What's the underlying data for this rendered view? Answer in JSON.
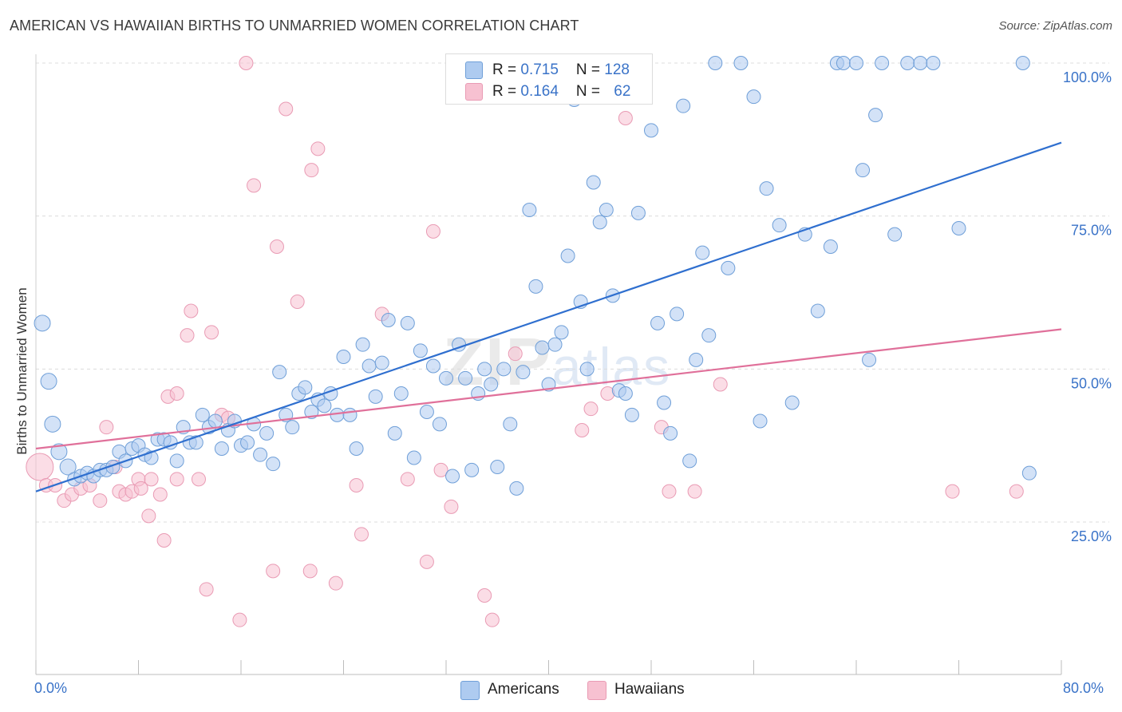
{
  "title": "AMERICAN VS HAWAIIAN BIRTHS TO UNMARRIED WOMEN CORRELATION CHART",
  "source": "Source: ZipAtlas.com",
  "watermark": {
    "zip": "ZIP",
    "atlas": "atlas"
  },
  "legend_top": {
    "americans": {
      "r_label": "R = ",
      "r_value": "0.715",
      "n_label": "N = ",
      "n_value": "128"
    },
    "hawaiians": {
      "r_label": "R = ",
      "r_value": "0.164",
      "n_label": "N = ",
      "n_value": "62"
    }
  },
  "colors": {
    "americans_fill": "#aecbf0",
    "americans_stroke": "#6f9fd8",
    "americans_line": "#2f6fcf",
    "hawaiians_fill": "#f7c1d1",
    "hawaiians_stroke": "#e99bb4",
    "hawaiians_line": "#e0709a",
    "axis_label": "#3a73c8",
    "grid": "#dcdcdc"
  },
  "chart_data": {
    "type": "scatter",
    "title": "AMERICAN VS HAWAIIAN BIRTHS TO UNMARRIED WOMEN CORRELATION CHART",
    "xlabel": "",
    "ylabel": "Births to Unmarried Women",
    "xlim": [
      0,
      80
    ],
    "ylim": [
      0,
      102
    ],
    "x_tick_labels": [
      "0.0%",
      "80.0%"
    ],
    "y_tick_labels": [
      "25.0%",
      "50.0%",
      "75.0%",
      "100.0%"
    ],
    "y_ticks": [
      25,
      50,
      75,
      100
    ],
    "grid": true,
    "legend_position": "top-center",
    "series": [
      {
        "name": "Americans",
        "r": 0.715,
        "n": 128,
        "trend": [
          [
            0,
            30.0
          ],
          [
            80,
            87.0
          ]
        ],
        "points": [
          [
            0.5,
            57.5
          ],
          [
            1,
            48
          ],
          [
            1.3,
            41
          ],
          [
            1.8,
            36.5
          ],
          [
            2.5,
            34
          ],
          [
            3,
            32
          ],
          [
            3.5,
            32.5
          ],
          [
            4,
            33
          ],
          [
            4.5,
            32.5
          ],
          [
            5,
            33.5
          ],
          [
            5.5,
            33.5
          ],
          [
            6,
            34
          ],
          [
            6.5,
            36.5
          ],
          [
            7,
            35
          ],
          [
            7.5,
            37
          ],
          [
            8,
            37.5
          ],
          [
            8.5,
            36
          ],
          [
            9,
            35.5
          ],
          [
            9.5,
            38.5
          ],
          [
            10,
            38.5
          ],
          [
            10.5,
            38
          ],
          [
            11,
            35
          ],
          [
            11.5,
            40.5
          ],
          [
            12,
            38
          ],
          [
            12.5,
            38
          ],
          [
            13,
            42.5
          ],
          [
            13.5,
            40.5
          ],
          [
            14,
            41.5
          ],
          [
            14.5,
            37
          ],
          [
            15,
            40
          ],
          [
            15.5,
            41.5
          ],
          [
            16,
            37.5
          ],
          [
            16.5,
            38
          ],
          [
            17,
            41
          ],
          [
            17.5,
            36
          ],
          [
            18,
            39.5
          ],
          [
            18.5,
            34.5
          ],
          [
            19,
            49.5
          ],
          [
            19.5,
            42.5
          ],
          [
            20,
            40.5
          ],
          [
            20.5,
            46
          ],
          [
            21,
            47
          ],
          [
            21.5,
            43
          ],
          [
            22,
            45
          ],
          [
            22.5,
            44
          ],
          [
            23,
            46
          ],
          [
            23.5,
            42.5
          ],
          [
            24,
            52
          ],
          [
            24.5,
            42.5
          ],
          [
            25,
            37
          ],
          [
            25.5,
            54
          ],
          [
            26,
            50.5
          ],
          [
            26.5,
            45.5
          ],
          [
            27,
            51
          ],
          [
            27.5,
            58
          ],
          [
            28,
            39.5
          ],
          [
            28.5,
            46
          ],
          [
            29,
            57.5
          ],
          [
            29.5,
            35.5
          ],
          [
            30,
            53
          ],
          [
            30.5,
            43
          ],
          [
            31,
            50.5
          ],
          [
            31.5,
            41
          ],
          [
            32,
            48.5
          ],
          [
            32.5,
            32.5
          ],
          [
            33,
            54
          ],
          [
            33.5,
            48.5
          ],
          [
            34,
            33.5
          ],
          [
            34.5,
            46
          ],
          [
            35,
            50
          ],
          [
            35.5,
            47.5
          ],
          [
            36,
            34
          ],
          [
            36.5,
            50
          ],
          [
            37,
            41
          ],
          [
            37.5,
            30.5
          ],
          [
            38,
            49.5
          ],
          [
            38.5,
            76
          ],
          [
            39,
            63.5
          ],
          [
            39.5,
            53.5
          ],
          [
            40,
            47.5
          ],
          [
            40.5,
            54
          ],
          [
            41,
            56
          ],
          [
            41.5,
            68.5
          ],
          [
            42,
            94
          ],
          [
            42.5,
            61
          ],
          [
            43,
            50
          ],
          [
            43.5,
            80.5
          ],
          [
            44,
            74
          ],
          [
            44.5,
            76
          ],
          [
            45,
            62
          ],
          [
            45.5,
            46.5
          ],
          [
            46,
            46
          ],
          [
            46.5,
            42.5
          ],
          [
            47,
            75.5
          ],
          [
            48,
            89
          ],
          [
            48.5,
            57.5
          ],
          [
            49,
            44.5
          ],
          [
            49.5,
            39.5
          ],
          [
            50,
            59
          ],
          [
            50.5,
            93
          ],
          [
            51,
            35
          ],
          [
            51.5,
            51.5
          ],
          [
            52,
            69
          ],
          [
            52.5,
            55.5
          ],
          [
            53,
            100
          ],
          [
            54,
            66.5
          ],
          [
            55,
            100
          ],
          [
            56,
            94.5
          ],
          [
            56.5,
            41.5
          ],
          [
            57,
            79.5
          ],
          [
            58,
            73.5
          ],
          [
            59,
            44.5
          ],
          [
            60,
            72
          ],
          [
            61,
            59.5
          ],
          [
            62,
            70
          ],
          [
            62.5,
            100
          ],
          [
            63,
            100
          ],
          [
            64,
            100
          ],
          [
            64.5,
            82.5
          ],
          [
            65,
            51.5
          ],
          [
            65.5,
            91.5
          ],
          [
            66,
            100
          ],
          [
            67,
            72
          ],
          [
            68,
            100
          ],
          [
            69,
            100
          ],
          [
            70,
            100
          ],
          [
            72,
            73
          ],
          [
            77,
            100
          ],
          [
            77.5,
            33
          ]
        ]
      },
      {
        "name": "Hawaiians",
        "r": 0.164,
        "n": 62,
        "trend": [
          [
            0,
            37.0
          ],
          [
            80,
            56.5
          ]
        ],
        "points": [
          [
            0.3,
            34
          ],
          [
            0.8,
            31
          ],
          [
            1.5,
            31
          ],
          [
            2.2,
            28.5
          ],
          [
            2.8,
            29.5
          ],
          [
            3.5,
            30.5
          ],
          [
            4.2,
            31
          ],
          [
            5,
            28.5
          ],
          [
            5.5,
            40.5
          ],
          [
            6.2,
            34
          ],
          [
            6.5,
            30
          ],
          [
            7,
            29.5
          ],
          [
            7.5,
            30
          ],
          [
            8,
            32
          ],
          [
            8.2,
            30.5
          ],
          [
            8.8,
            26
          ],
          [
            9,
            32
          ],
          [
            9.7,
            29.5
          ],
          [
            10,
            22
          ],
          [
            10.3,
            45.5
          ],
          [
            11,
            46
          ],
          [
            11,
            32
          ],
          [
            11.8,
            55.5
          ],
          [
            12.1,
            59.5
          ],
          [
            12.7,
            32
          ],
          [
            13.3,
            14
          ],
          [
            13.7,
            56
          ],
          [
            14.5,
            42.5
          ],
          [
            15,
            42
          ],
          [
            15.9,
            9
          ],
          [
            16.4,
            100
          ],
          [
            17,
            80
          ],
          [
            18.5,
            17
          ],
          [
            18.8,
            70
          ],
          [
            19.5,
            92.5
          ],
          [
            20.4,
            61
          ],
          [
            21.4,
            17
          ],
          [
            21.5,
            82.5
          ],
          [
            22,
            86
          ],
          [
            23.4,
            15
          ],
          [
            25,
            31
          ],
          [
            25.4,
            23
          ],
          [
            27,
            59
          ],
          [
            29,
            32
          ],
          [
            30.5,
            18.5
          ],
          [
            31,
            72.5
          ],
          [
            31.6,
            33.5
          ],
          [
            32.4,
            27.5
          ],
          [
            33.6,
            100
          ],
          [
            35,
            13
          ],
          [
            35.6,
            9
          ],
          [
            37.4,
            52.5
          ],
          [
            42.6,
            40
          ],
          [
            43.3,
            43.5
          ],
          [
            44.6,
            46
          ],
          [
            46,
            91
          ],
          [
            48.8,
            40.5
          ],
          [
            49.4,
            30
          ],
          [
            51.4,
            30
          ],
          [
            53.4,
            47.5
          ],
          [
            71.5,
            30
          ],
          [
            76.5,
            30
          ]
        ]
      }
    ]
  },
  "legend_bottom": {
    "americans": "Americans",
    "hawaiians": "Hawaiians"
  },
  "axis_labels": {
    "ylabel": "Births to Unmarried Women",
    "x_min": "0.0%",
    "x_max": "80.0%"
  }
}
